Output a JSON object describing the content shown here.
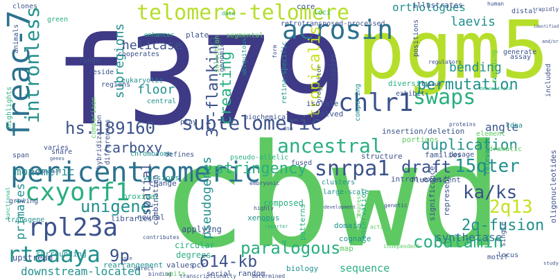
{
  "palette": {
    "purple": "#3e3a86",
    "indigo": "#3b528b",
    "blue": "#355f8d",
    "steel": "#2c728e",
    "teal": "#21908d",
    "green": "#29af7f",
    "lime": "#5ec962",
    "yellow": "#b5de2b",
    "gold": "#c8e020",
    "light": "#aadc32"
  },
  "words": [
    {
      "text": "cbwd",
      "color": "#5ec962"
    },
    {
      "text": "f379",
      "color": "#3e3a86"
    },
    {
      "text": "pgm5",
      "color": "#b5de2b"
    },
    {
      "text": "pericentromeric",
      "color": "#2c728e"
    },
    {
      "text": "acrosin",
      "color": "#2c728e"
    },
    {
      "text": "telomere-telomere",
      "color": "#b5de2b"
    },
    {
      "text": "subtelomeric",
      "color": "#3b528b"
    },
    {
      "text": "hs.189160",
      "color": "#3b528b"
    },
    {
      "text": "freac-7",
      "color": "#2c728e"
    },
    {
      "text": "intronless",
      "color": "#21908d"
    },
    {
      "text": "chlr1",
      "color": "#3b528b"
    },
    {
      "text": "swaps",
      "color": "#29af7f"
    },
    {
      "text": "cxyorf1",
      "color": "#29af7f"
    },
    {
      "text": "snrpa1",
      "color": "#3b528b"
    },
    {
      "text": "15qter",
      "color": "#21908d"
    },
    {
      "text": "rpl23a",
      "color": "#3b528b"
    },
    {
      "text": "rtaaaya",
      "color": "#21908d"
    },
    {
      "text": "unigene",
      "color": "#21908d"
    },
    {
      "text": "paralogous",
      "color": "#29af7f"
    },
    {
      "text": "cobalamin",
      "color": "#29af7f"
    },
    {
      "text": "614-kb",
      "color": "#3b528b"
    },
    {
      "text": "2q13",
      "color": "#c8e020"
    },
    {
      "text": "ka/ks",
      "color": "#3b528b"
    },
    {
      "text": "ancestral",
      "color": "#29af7f"
    },
    {
      "text": "draft",
      "color": "#3b528b"
    },
    {
      "text": "stringency",
      "color": "#29af7f"
    },
    {
      "text": "duplication",
      "color": "#21908d"
    },
    {
      "text": "2q-fusion",
      "color": "#21908d"
    },
    {
      "text": "9p",
      "color": "#3b528b"
    },
    {
      "text": "permutation",
      "color": "#21908d"
    },
    {
      "text": "tropicalis",
      "color": "#c8e020"
    },
    {
      "text": "3'-flanking",
      "color": "#3b528b"
    },
    {
      "text": "creating",
      "color": "#29af7f"
    },
    {
      "text": "subregions",
      "color": "#21908d"
    },
    {
      "text": "helicase",
      "color": "#3b528b"
    },
    {
      "text": "carboxy",
      "color": "#3b528b"
    },
    {
      "text": "monomeric",
      "color": "#21908d"
    },
    {
      "text": "primates",
      "color": "#21908d"
    },
    {
      "text": "spatial",
      "color": "#3b528b"
    },
    {
      "text": "pseudogenes",
      "color": "#21908d"
    },
    {
      "text": "floor",
      "color": "#21908d"
    },
    {
      "text": "orthologues",
      "color": "#21908d"
    },
    {
      "text": "bending",
      "color": "#21908d"
    },
    {
      "text": "laevis",
      "color": "#21908d"
    },
    {
      "text": "angle",
      "color": "#3b528b"
    },
    {
      "text": "synthetase",
      "color": "#2c728e"
    },
    {
      "text": "downstream-located",
      "color": "#21908d"
    },
    {
      "text": "sequence",
      "color": "#29af7f"
    },
    {
      "text": "retrotransposed-processed",
      "color": "#3b528b"
    },
    {
      "text": "clones",
      "color": "#3b528b"
    },
    {
      "text": "versions",
      "color": "#21908d"
    },
    {
      "text": "applying",
      "color": "#3b528b"
    },
    {
      "text": "eukaryotic",
      "color": "#21908d"
    },
    {
      "text": "cooperates",
      "color": "#3b528b"
    },
    {
      "text": "circular",
      "color": "#29af7f"
    },
    {
      "text": "degrees",
      "color": "#29af7f"
    },
    {
      "text": "composed",
      "color": "#29af7f"
    },
    {
      "text": "transgene",
      "color": "#21908d"
    },
    {
      "text": "libraries",
      "color": "#3b528b"
    },
    {
      "text": "varies",
      "color": "#3b528b"
    },
    {
      "text": "upstream",
      "color": "#3b528b"
    },
    {
      "text": "surrounding",
      "color": "#21908d"
    },
    {
      "text": "rearrangement",
      "color": "#21908d"
    },
    {
      "text": "values",
      "color": "#3b528b"
    },
    {
      "text": "pcr",
      "color": "#3b528b"
    },
    {
      "text": "units",
      "color": "#5ec962"
    },
    {
      "text": "serial",
      "color": "#3b528b"
    },
    {
      "text": "random",
      "color": "#3b528b"
    },
    {
      "text": "biology",
      "color": "#21908d"
    },
    {
      "text": "xenopus",
      "color": "#21908d"
    },
    {
      "text": "domain",
      "color": "#21908d"
    },
    {
      "text": "cognate",
      "color": "#21908d"
    },
    {
      "text": "map",
      "color": "#5ec962"
    },
    {
      "text": "locus",
      "color": "#3b528b"
    },
    {
      "text": "fluorescent",
      "color": "#3b528b"
    },
    {
      "text": "intron-exon",
      "color": "#3b528b"
    },
    {
      "text": "dosage",
      "color": "#3b528b"
    },
    {
      "text": "structure",
      "color": "#3b528b"
    },
    {
      "text": "families",
      "color": "#3b528b"
    },
    {
      "text": "insertion/deletion",
      "color": "#3b528b"
    },
    {
      "text": "diversity",
      "color": "#29af7f"
    },
    {
      "text": "exhibit",
      "color": "#3b528b"
    },
    {
      "text": "portions",
      "color": "#5ec962"
    },
    {
      "text": "isolate",
      "color": "#3b528b"
    },
    {
      "text": "evolved",
      "color": "#3b528b"
    },
    {
      "text": "copies",
      "color": "#3b528b"
    },
    {
      "text": "pseudo-allelic",
      "color": "#29af7f"
    },
    {
      "text": "fused",
      "color": "#3b528b"
    },
    {
      "text": "clusters",
      "color": "#21908d"
    },
    {
      "text": "large-scale",
      "color": "#21908d"
    },
    {
      "text": "central",
      "color": "#21908d"
    },
    {
      "text": "differences",
      "color": "#3b528b"
    },
    {
      "text": "hybridization",
      "color": "#3b528b"
    },
    {
      "text": "regions",
      "color": "#3b528b"
    },
    {
      "text": "reside",
      "color": "#3b528b"
    },
    {
      "text": "range",
      "color": "#3b528b"
    },
    {
      "text": "plate",
      "color": "#3b528b"
    },
    {
      "text": "segmental",
      "color": "#5ec962"
    },
    {
      "text": "selection",
      "color": "#5ec962"
    },
    {
      "text": "genomic",
      "color": "#3b528b"
    },
    {
      "text": "biochemical",
      "color": "#3b528b"
    },
    {
      "text": "comparing",
      "color": "#21908d"
    },
    {
      "text": "progenitor",
      "color": "#3b528b"
    },
    {
      "text": "ubiquitous",
      "color": "#21908d"
    },
    {
      "text": "retina-specific",
      "color": "#21908d"
    },
    {
      "text": "chromosome",
      "color": "#21908d"
    },
    {
      "text": "defines",
      "color": "#3b528b"
    },
    {
      "text": "change",
      "color": "#3b528b"
    },
    {
      "text": "proximal",
      "color": "#29af7f"
    },
    {
      "text": "combination",
      "color": "#3b528b"
    },
    {
      "text": "neural",
      "color": "#3b528b"
    },
    {
      "text": "embryonic",
      "color": "#3b528b"
    },
    {
      "text": "highly",
      "color": "#3b528b"
    },
    {
      "text": "patterns",
      "color": "#29af7f"
    },
    {
      "text": "conservation",
      "color": "#29af7f"
    },
    {
      "text": "significance",
      "color": "#3b528b"
    },
    {
      "text": "represent",
      "color": "#3b528b"
    },
    {
      "text": "relevance",
      "color": "#21908d"
    },
    {
      "text": "dramatic",
      "color": "#5ec962"
    },
    {
      "text": "cdna",
      "color": "#21908d"
    },
    {
      "text": "element",
      "color": "#5ec962"
    },
    {
      "text": "single",
      "color": "#3b528b"
    },
    {
      "text": "oligonucleotides",
      "color": "#3b528b"
    },
    {
      "text": "motif",
      "color": "#3b528b"
    },
    {
      "text": "study",
      "color": "#3b528b"
    },
    {
      "text": "rapidly",
      "color": "#3b528b"
    },
    {
      "text": "distal",
      "color": "#3b528b"
    },
    {
      "text": "identified",
      "color": "#3b528b"
    },
    {
      "text": "and/or",
      "color": "#3b528b"
    },
    {
      "text": "assay",
      "color": "#3b528b"
    },
    {
      "text": "generate",
      "color": "#3b528b"
    },
    {
      "text": "encoding",
      "color": "#5ec962"
    },
    {
      "text": "included",
      "color": "#3b528b"
    },
    {
      "text": "positions",
      "color": "#3b528b"
    },
    {
      "text": "illustrates",
      "color": "#3b528b"
    },
    {
      "text": "human",
      "color": "#3b528b"
    },
    {
      "text": "core",
      "color": "#3b528b"
    },
    {
      "text": "loci",
      "color": "#29af7f"
    },
    {
      "text": "data",
      "color": "#29af7f"
    },
    {
      "text": "green",
      "color": "#29af7f"
    },
    {
      "text": "animals",
      "color": "#3b528b"
    },
    {
      "text": "highlights",
      "color": "#29af7f"
    },
    {
      "text": "span",
      "color": "#3b528b"
    },
    {
      "text": "share",
      "color": "#3b528b"
    },
    {
      "text": "genes",
      "color": "#3b528b"
    },
    {
      "text": "responsible",
      "color": "#3b528b"
    },
    {
      "text": "growing",
      "color": "#3b528b"
    },
    {
      "text": "functional",
      "color": "#29af7f"
    },
    {
      "text": "comparison",
      "color": "#5ec962"
    },
    {
      "text": "play",
      "color": "#3b528b"
    },
    {
      "text": "enhancer",
      "color": "#29af7f"
    },
    {
      "text": "regulators",
      "color": "#3b528b"
    },
    {
      "text": "tissue",
      "color": "#3b528b"
    },
    {
      "text": "demonstrate",
      "color": "#29af7f"
    },
    {
      "text": "proteins",
      "color": "#3b528b"
    },
    {
      "text": "genetic",
      "color": "#3b528b"
    },
    {
      "text": "development",
      "color": "#3b528b"
    },
    {
      "text": "sites",
      "color": "#5ec962"
    },
    {
      "text": "express",
      "color": "#5ec962"
    },
    {
      "text": "active",
      "color": "#5ec962"
    },
    {
      "text": "reporter",
      "color": "#29af7f"
    },
    {
      "text": "ratio",
      "color": "#29af7f"
    },
    {
      "text": "independent",
      "color": "#5ec962"
    },
    {
      "text": "determined",
      "color": "#3b528b"
    },
    {
      "text": "transcriptionally",
      "color": "#3b528b"
    },
    {
      "text": "binding",
      "color": "#3b528b"
    },
    {
      "text": "direct",
      "color": "#3b528b"
    },
    {
      "text": "role",
      "color": "#3b528b"
    },
    {
      "text": "contributes",
      "color": "#3b528b"
    },
    {
      "text": "dna",
      "color": "#3b528b"
    },
    {
      "text": "form",
      "color": "#3b528b"
    }
  ]
}
